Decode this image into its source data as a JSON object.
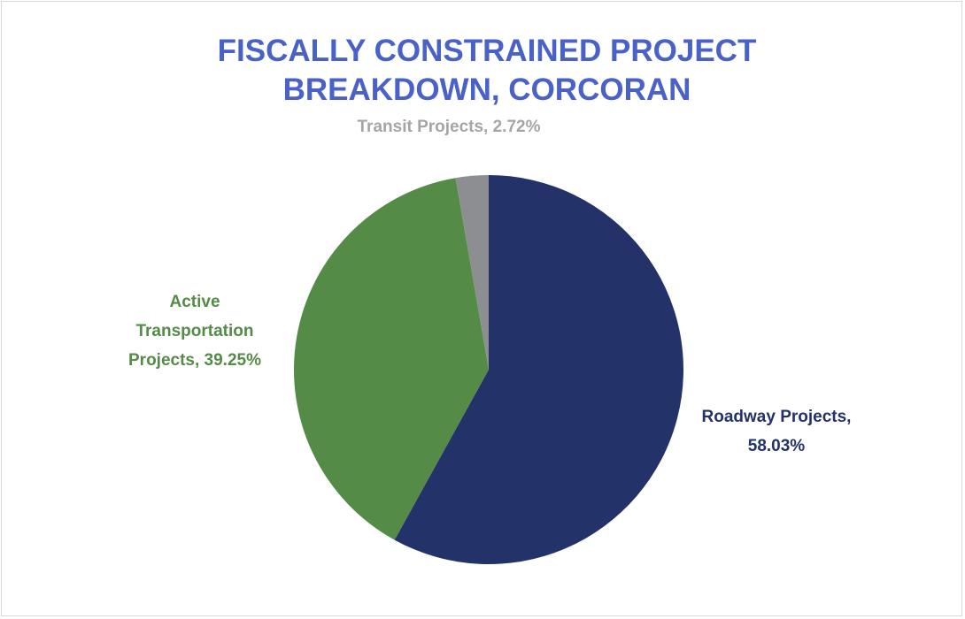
{
  "chart_data": {
    "type": "pie",
    "title": "FISCALLY CONSTRAINED PROJECT BREAKDOWN, CORCORAN",
    "values": [
      58.03,
      39.25,
      2.72
    ],
    "value_labels": [
      "Roadway Projects, 58.03%",
      "Active Transportation Projects, 39.25%",
      "Transit Projects, 2.72%"
    ],
    "colors": [
      "#233268",
      "#548b47",
      "#8c8e91"
    ]
  }
}
